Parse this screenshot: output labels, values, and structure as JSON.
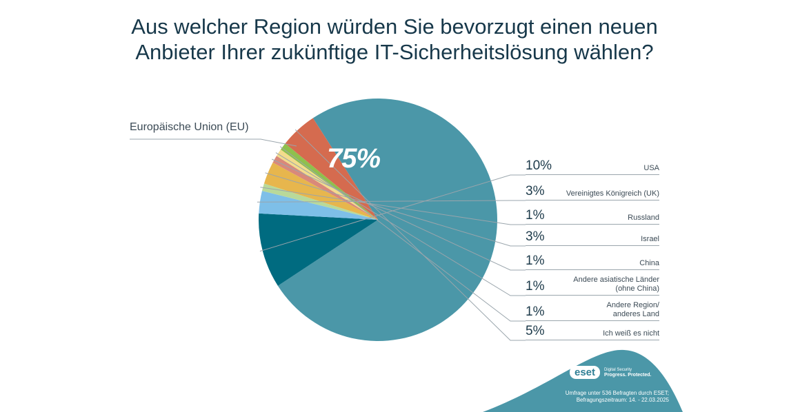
{
  "title_lines": [
    "Aus welcher Region würden Sie bevorzugt einen neuen",
    "Anbieter Ihrer zukünftige IT-Sicherheitslösung wählen?"
  ],
  "chart_data": {
    "type": "pie",
    "title": "Aus welcher Region würden Sie bevorzugt einen neuen Anbieter Ihrer zukünftige IT-Sicherheitslösung wählen?",
    "slices": [
      {
        "label": "Europäische Union (EU)",
        "pct_label": "75%",
        "value": 75,
        "color": "#4b97a8"
      },
      {
        "label": "USA",
        "pct_label": "10%",
        "value": 10,
        "color": "#006b80"
      },
      {
        "label": "Vereinigtes Königreich (UK)",
        "pct_label": "3%",
        "value": 3,
        "color": "#7ebfe8"
      },
      {
        "label": "Russland",
        "pct_label": "1%",
        "value": 1,
        "color": "#b9d99a"
      },
      {
        "label": "Israel",
        "pct_label": "3%",
        "value": 3,
        "color": "#e7b64d"
      },
      {
        "label": "China",
        "pct_label": "1%",
        "value": 1,
        "color": "#d9897a"
      },
      {
        "label": "Andere asiatische Länder (ohne China)",
        "pct_label": "1%",
        "value": 1,
        "color": "#f2dc8c"
      },
      {
        "label": "Andere Region/ anderes Land",
        "pct_label": "1%",
        "value": 1,
        "color": "#8fc04d"
      },
      {
        "label": "Ich weiß es nicht",
        "pct_label": "5%",
        "value": 5,
        "color": "#d56b4f"
      }
    ]
  },
  "legend": [
    {
      "pct": "10%",
      "lines": [
        "USA"
      ]
    },
    {
      "pct": "3%",
      "lines": [
        "Vereinigtes Königreich (UK)"
      ]
    },
    {
      "pct": "1%",
      "lines": [
        "Russland"
      ]
    },
    {
      "pct": "3%",
      "lines": [
        "Israel"
      ]
    },
    {
      "pct": "1%",
      "lines": [
        "China"
      ]
    },
    {
      "pct": "1%",
      "lines": [
        "Andere asiatische Länder",
        "(ohne China)"
      ]
    },
    {
      "pct": "1%",
      "lines": [
        "Andere Region/",
        "anderes Land"
      ]
    },
    {
      "pct": "5%",
      "lines": [
        "Ich weiß es nicht"
      ]
    }
  ],
  "eu_label": "Europäische Union (EU)",
  "eu_pct": "75%",
  "brand": {
    "logo": "eset",
    "tagline_1": "Digital Security",
    "tagline_2": "Progress. Protected."
  },
  "footnote": {
    "line_1": "Umfrage unter 536 Befragten durch ESET;",
    "line_2": "Befragungszeitraum: 14. - 22.03.2025"
  },
  "colors": {
    "footer_accent": "#4b97a8",
    "text": "#17384a"
  }
}
